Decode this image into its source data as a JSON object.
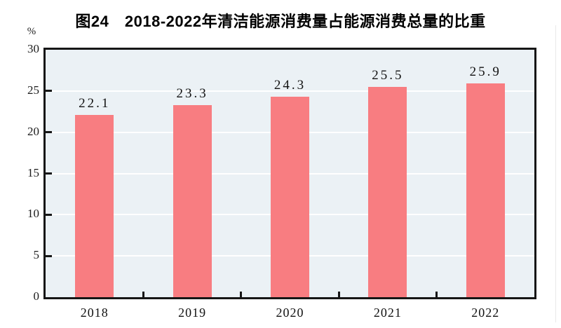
{
  "chart_data": {
    "type": "bar",
    "title": "图24　2018-2022年清洁能源消费量占能源消费总量的比重",
    "unit_label": "%",
    "categories": [
      "2018",
      "2019",
      "2020",
      "2021",
      "2022"
    ],
    "values": [
      22.1,
      23.3,
      24.3,
      25.5,
      25.9
    ],
    "data_labels": [
      "22.1",
      "23.3",
      "24.3",
      "25.5",
      "25.9"
    ],
    "ylabel": "%",
    "xlabel": "",
    "ylim": [
      0,
      30
    ],
    "yticks": [
      0,
      5,
      10,
      15,
      20,
      25,
      30
    ],
    "grid": true,
    "legend_position": "none",
    "colors": {
      "bar": "#f87d81",
      "plot_background": "#ebf1f5",
      "gridline": "#ffffff",
      "axis": "#161616",
      "text": "#111111"
    }
  }
}
